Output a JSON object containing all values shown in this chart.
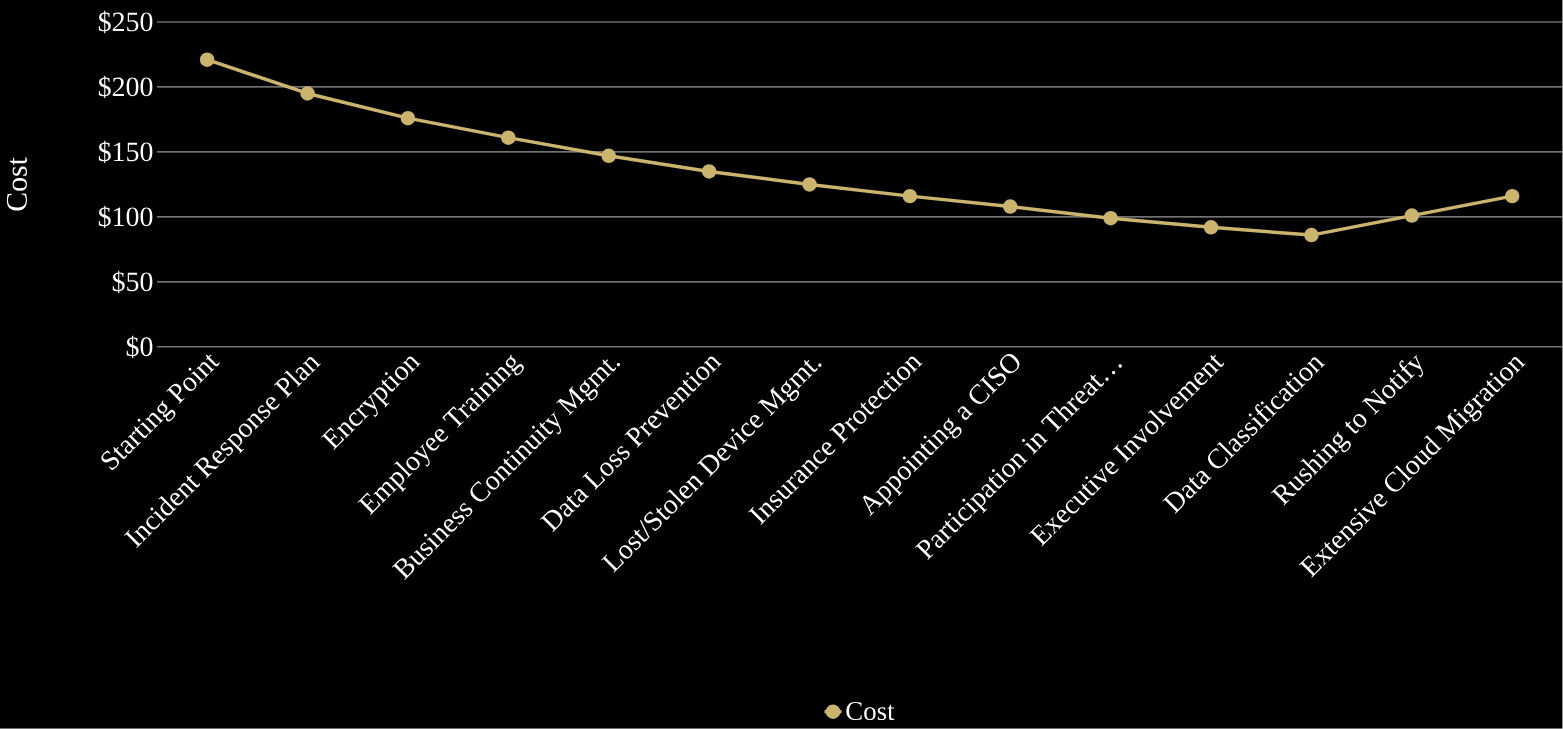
{
  "chart_data": {
    "type": "line",
    "ylabel": "Cost",
    "categories": [
      "Starting Point",
      "Incident Response Plan",
      "Encryption",
      "Employee Training",
      "Business Continuity Mgmt.",
      "Data Loss Prevention",
      "Lost/Stolen Device Mgmt.",
      "Insurance Protection",
      "Appointing a CISO",
      "Participation in Threat…",
      "Executive Involvement",
      "Data Classification",
      "Rushing to Notify",
      "Extensive Cloud Migration"
    ],
    "series": [
      {
        "name": "Cost",
        "color": "#cbb56e",
        "values": [
          221,
          195,
          176,
          161,
          147,
          135,
          125,
          116,
          108,
          99,
          92,
          86,
          101,
          116
        ]
      }
    ],
    "ylim": [
      0,
      250
    ],
    "yticks": [
      {
        "value": 0,
        "label": "$0"
      },
      {
        "value": 50,
        "label": "$50"
      },
      {
        "value": 100,
        "label": "$100"
      },
      {
        "value": 150,
        "label": "$150"
      },
      {
        "value": 200,
        "label": "$200"
      },
      {
        "value": 250,
        "label": "$250"
      }
    ],
    "grid": "y",
    "legend": "bottom",
    "marker": "circle",
    "line_style": "solid"
  }
}
